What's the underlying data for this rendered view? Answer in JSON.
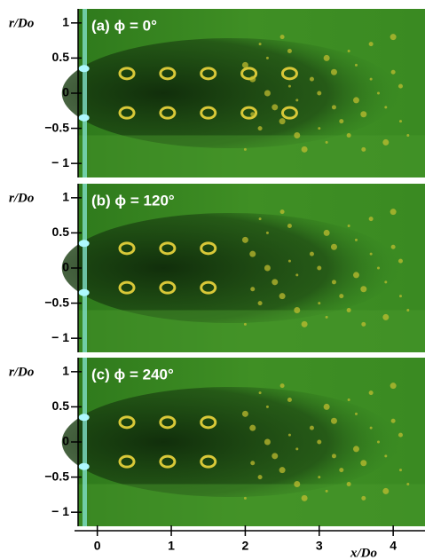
{
  "figure": {
    "panels": [
      {
        "label": "(a) ϕ = 0°"
      },
      {
        "label": "(b) ϕ = 120°"
      },
      {
        "label": "(c) ϕ = 240°"
      }
    ],
    "y_axis": {
      "label": "r/Do",
      "ylim": [
        -1.2,
        1.2
      ],
      "ticks": [
        1,
        0.5,
        0,
        {
          "value": -0.5,
          "label": "−0.5"
        },
        {
          "value": -1,
          "label": "− 1"
        }
      ]
    },
    "x_axis": {
      "label": "x/Do",
      "xlim": [
        -0.26,
        4.43
      ],
      "ticks": [
        0,
        1,
        2,
        3,
        4
      ]
    }
  }
}
